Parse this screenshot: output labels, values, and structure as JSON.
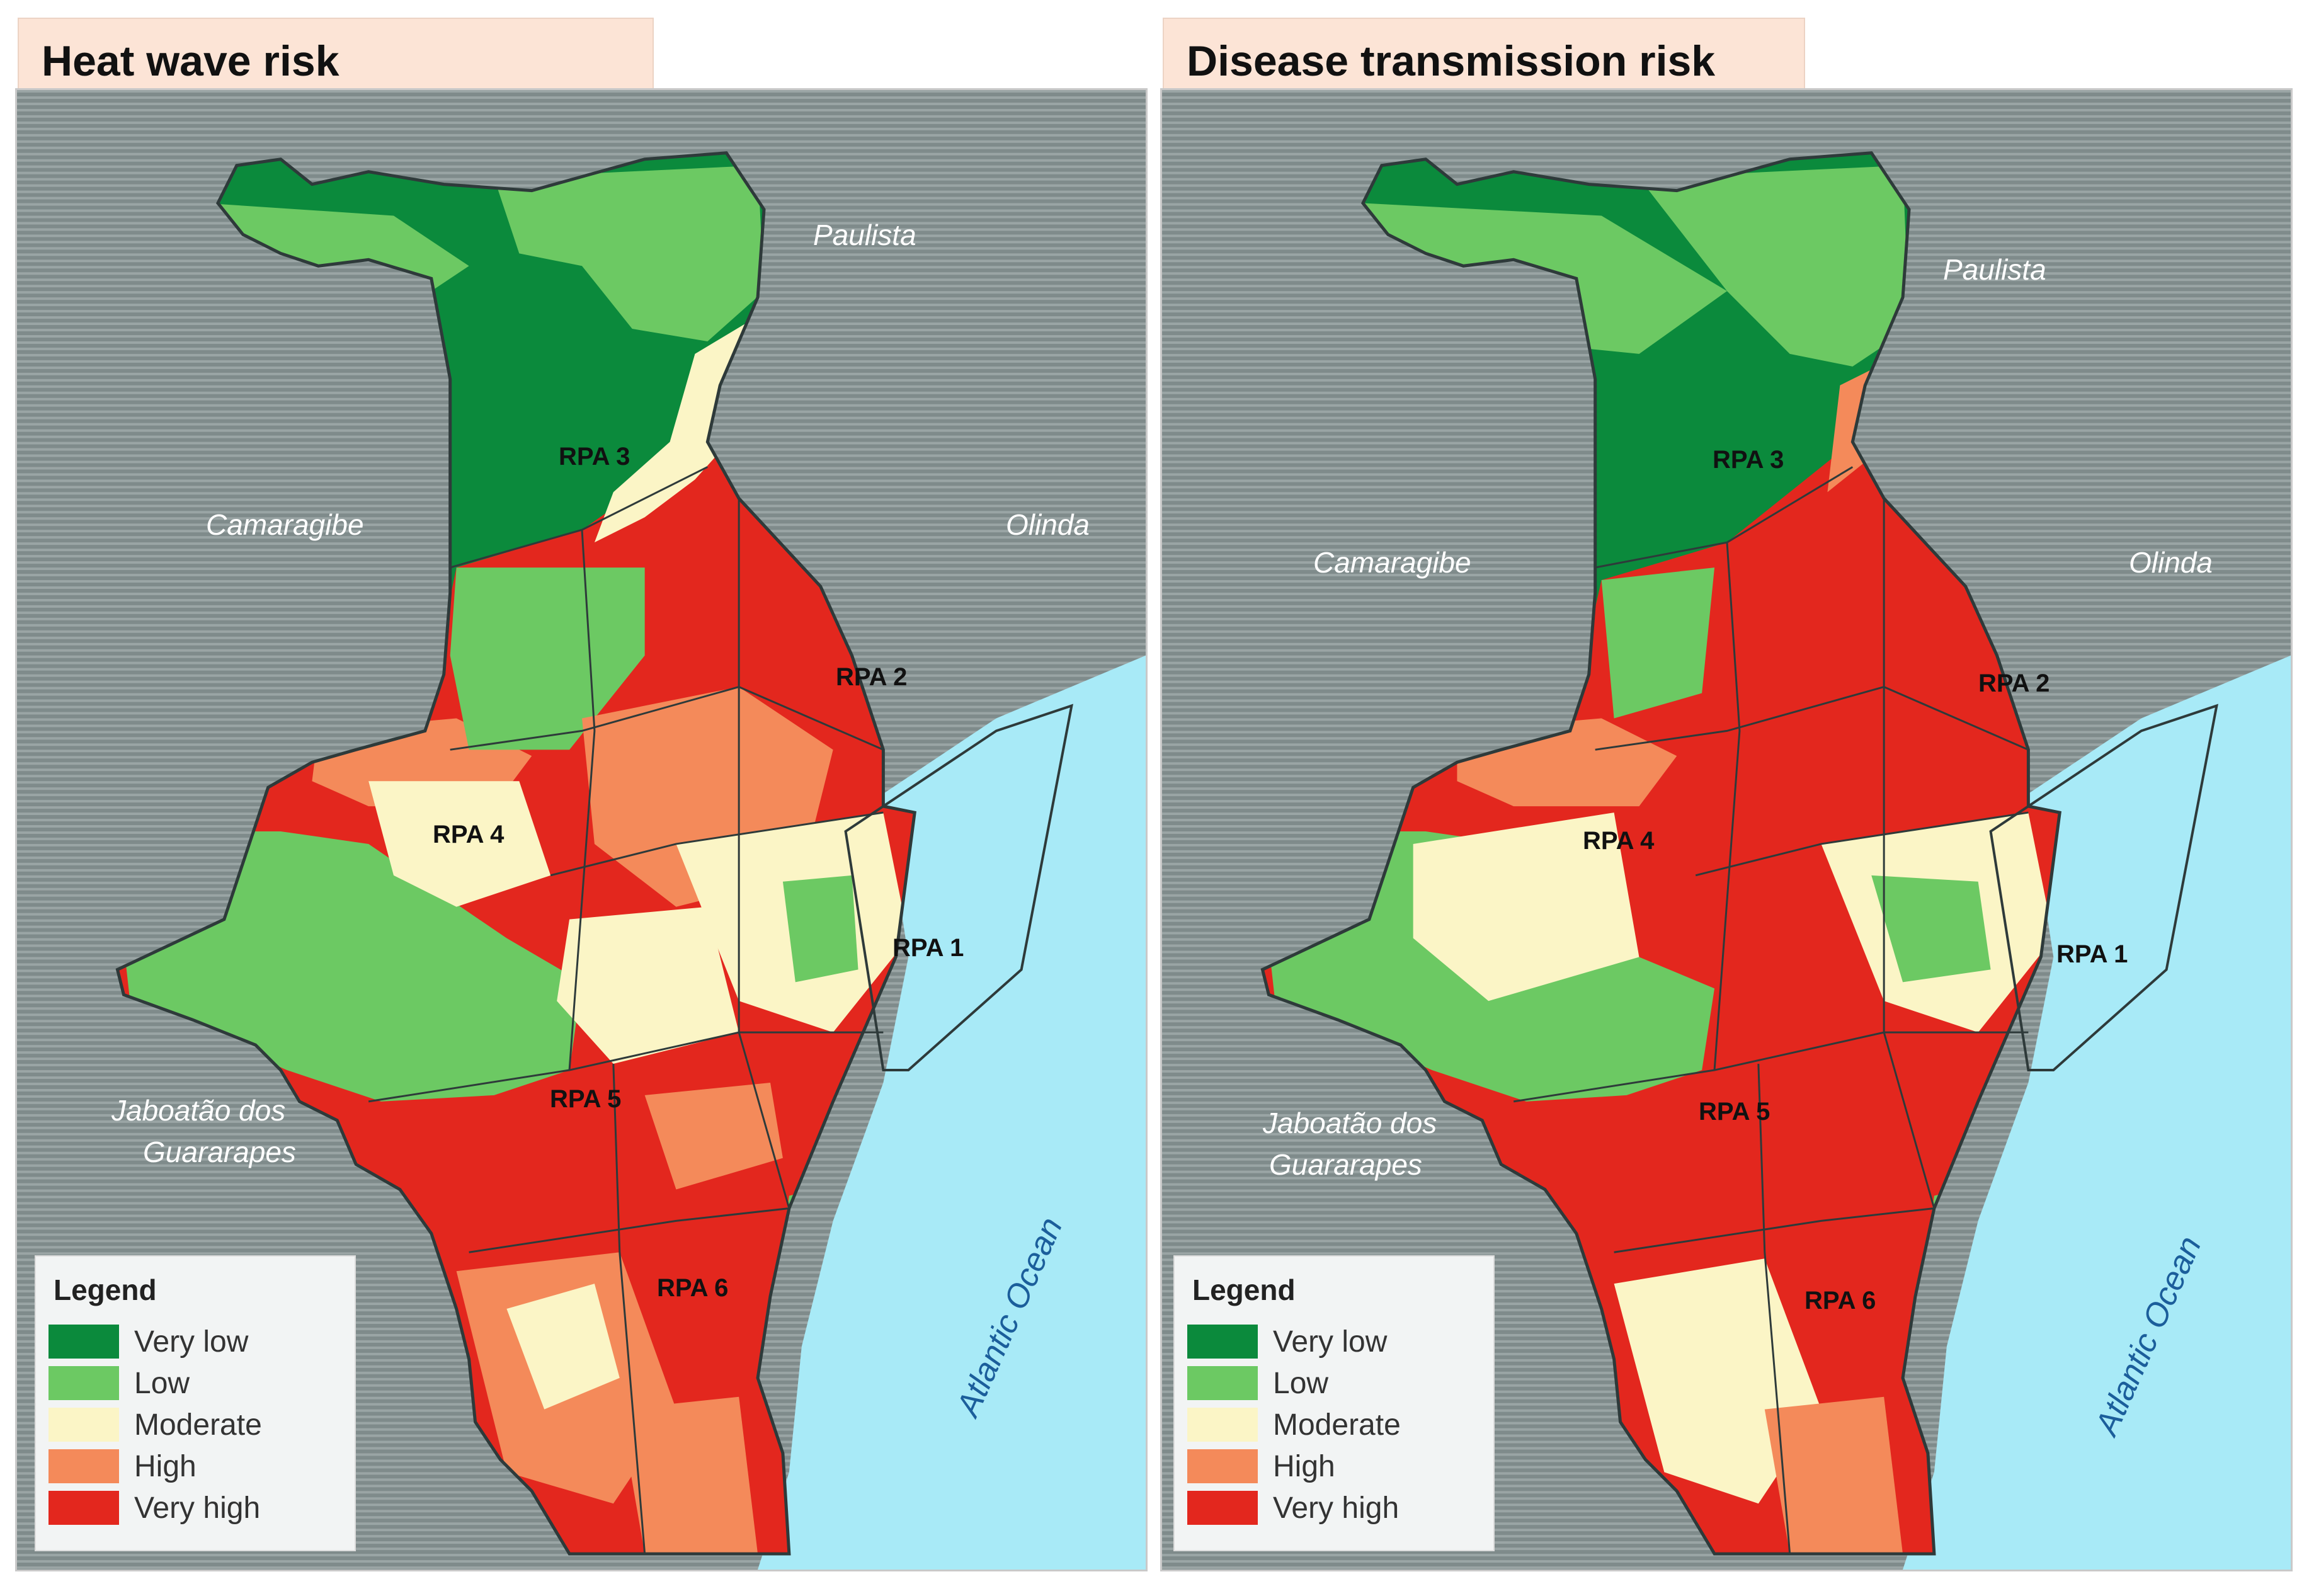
{
  "panels": [
    {
      "title": "Heat wave risk",
      "places": {
        "paulista": "Paulista",
        "camaragibe": "Camaragibe",
        "olinda": "Olinda",
        "jaboatao_line1": "Jaboatão dos",
        "jaboatao_line2": "Guararapes",
        "ocean": "Atlantic Ocean"
      },
      "regions": [
        "RPA 1",
        "RPA 2",
        "RPA 3",
        "RPA 4",
        "RPA 5",
        "RPA 6"
      ]
    },
    {
      "title": "Disease transmission  risk",
      "places": {
        "paulista": "Paulista",
        "camaragibe": "Camaragibe",
        "olinda": "Olinda",
        "jaboatao_line1": "Jaboatão dos",
        "jaboatao_line2": "Guararapes",
        "ocean": "Atlantic Ocean"
      },
      "regions": [
        "RPA 1",
        "RPA 2",
        "RPA 3",
        "RPA 4",
        "RPA 5",
        "RPA 6"
      ]
    }
  ],
  "legend": {
    "title": "Legend",
    "items": [
      {
        "label": "Very low",
        "color": "#0b8a3c"
      },
      {
        "label": "Low",
        "color": "#6cc963"
      },
      {
        "label": "Moderate",
        "color": "#fbf5c6"
      },
      {
        "label": "High",
        "color": "#f48a5a"
      },
      {
        "label": "Very high",
        "color": "#e3271e"
      }
    ]
  },
  "colors": {
    "background_land": "#8a9696",
    "ocean": "#a8eaf7",
    "boundary": "#2e3a3a"
  }
}
